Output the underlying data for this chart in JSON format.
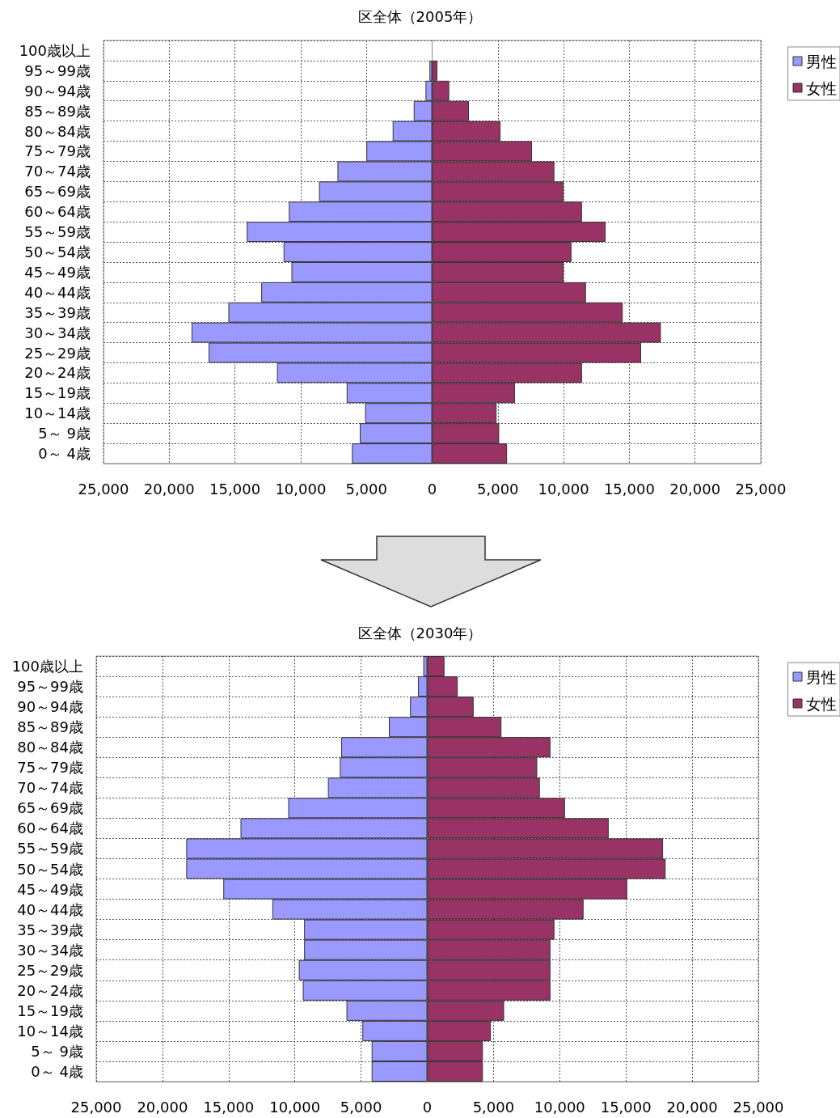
{
  "chart_data": [
    {
      "type": "bar",
      "title": "区全体（2005年）",
      "orientation": "horizontal",
      "stacked": true,
      "grid": true,
      "legend": "top right",
      "categories": [
        "100歳以上",
        "95～99歳",
        "90～94歳",
        "85～89歳",
        "80～84歳",
        "75～79歳",
        "70～74歳",
        "65～69歳",
        "60～64歳",
        "55～59歳",
        "50～54歳",
        "45～49歳",
        "40～44歳",
        "35～39歳",
        "30～34歳",
        "25～29歳",
        "20～24歳",
        "15～19歳",
        "10～14歳",
        "5～ 9歳",
        "0～ 4歳"
      ],
      "xlim": [
        -25000,
        25000
      ],
      "xticks": [
        {
          "value": -25000,
          "label": "25,000"
        },
        {
          "value": -20000,
          "label": "20,000"
        },
        {
          "value": -15000,
          "label": "15,000"
        },
        {
          "value": -10000,
          "label": "10,000"
        },
        {
          "value": -5000,
          "label": "5,000"
        },
        0,
        {
          "value": 5000,
          "label": "5,000"
        },
        {
          "value": 10000,
          "label": "10,000"
        },
        {
          "value": 15000,
          "label": "15,000"
        },
        {
          "value": 20000,
          "label": "20,000"
        },
        {
          "value": 25000,
          "label": "25,000"
        }
      ],
      "series": [
        {
          "name": "男性",
          "color": "#9999ff",
          "values": [
            null,
            -200,
            -500,
            -1400,
            -3000,
            -5000,
            -7200,
            -8600,
            -10900,
            -14100,
            -11300,
            -10700,
            -13000,
            -15500,
            -18300,
            -17000,
            -11800,
            -6500,
            -5100,
            -5500,
            -6100
          ]
        },
        {
          "name": "女性",
          "color": "#993366",
          "values": [
            null,
            400,
            1300,
            2800,
            5200,
            7600,
            9300,
            10000,
            11400,
            13200,
            10600,
            10000,
            11700,
            14500,
            17400,
            15900,
            11400,
            6300,
            4900,
            5100,
            5700
          ]
        }
      ]
    },
    {
      "type": "bar",
      "title": "区全体（2030年）",
      "orientation": "horizontal",
      "stacked": true,
      "grid": true,
      "legend": "top right",
      "categories": [
        "100歳以上",
        "95～99歳",
        "90～94歳",
        "85～89歳",
        "80～84歳",
        "75～79歳",
        "70～74歳",
        "65～69歳",
        "60～64歳",
        "55～59歳",
        "50～54歳",
        "45～49歳",
        "40～44歳",
        "35～39歳",
        "30～34歳",
        "25～29歳",
        "20～24歳",
        "15～19歳",
        "10～14歳",
        "5～ 9歳",
        "0～ 4歳"
      ],
      "xlim": [
        -25000,
        25000
      ],
      "xticks": [
        {
          "value": -25000,
          "label": "25,000"
        },
        {
          "value": -20000,
          "label": "20,000"
        },
        {
          "value": -15000,
          "label": "15,000"
        },
        {
          "value": -10000,
          "label": "10,000"
        },
        {
          "value": -5000,
          "label": "5,000"
        },
        0,
        {
          "value": 5000,
          "label": "5,000"
        },
        {
          "value": 10000,
          "label": "10,000"
        },
        {
          "value": 15000,
          "label": "15,000"
        },
        {
          "value": 20000,
          "label": "20,000"
        },
        {
          "value": 25000,
          "label": "25,000"
        }
      ],
      "series": [
        {
          "name": "男性",
          "color": "#9999ff",
          "values": [
            -300,
            -700,
            -1300,
            -2900,
            -6500,
            -6600,
            -7500,
            -10500,
            -14100,
            -18200,
            -18200,
            -15400,
            -11700,
            -9300,
            -9300,
            -9700,
            -9400,
            -6100,
            -4900,
            -4200,
            -4200
          ]
        },
        {
          "name": "女性",
          "color": "#993366",
          "values": [
            1300,
            2300,
            3500,
            5600,
            9300,
            8300,
            8500,
            10400,
            13700,
            17800,
            18000,
            15100,
            11800,
            9600,
            9300,
            9300,
            9300,
            5800,
            4800,
            4200,
            4200
          ]
        }
      ]
    }
  ]
}
